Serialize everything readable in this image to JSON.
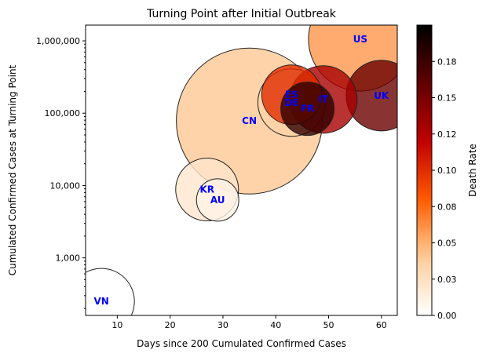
{
  "chart_data": {
    "type": "scatter",
    "title": "Turning Point after Initial Outbreak",
    "xlabel": "Days since 200 Cumulated Confirmed Cases",
    "ylabel": "Cumulated Confirmed Cases at Turning Point",
    "xlim": [
      4,
      63
    ],
    "ylim": [
      160,
      1650000
    ],
    "yscale": "log",
    "x_ticks": [
      10,
      20,
      30,
      40,
      50,
      60
    ],
    "x_tick_labels": [
      "10",
      "20",
      "30",
      "40",
      "50",
      "60"
    ],
    "y_ticks": [
      1000,
      10000,
      100000,
      1000000
    ],
    "y_tick_labels": [
      "1,000",
      "10,000",
      "100,000",
      "1,000,000"
    ],
    "grid": false,
    "colorbar": {
      "label": "Death Rate",
      "range": [
        0,
        0.2
      ],
      "ticks": [
        0.0,
        0.025,
        0.05,
        0.075,
        0.1,
        0.125,
        0.15,
        0.175
      ],
      "tick_labels": [
        "0.00",
        "0.03",
        "0.05",
        "0.08",
        "0.10",
        "0.12",
        "0.15",
        "0.18"
      ],
      "colormap": "gist_heat_r"
    },
    "points": [
      {
        "label": "VN",
        "x": 7,
        "y": 250,
        "death_rate": 0.0,
        "size": 42
      },
      {
        "label": "KR",
        "x": 27,
        "y": 8800,
        "death_rate": 0.02,
        "size": 40
      },
      {
        "label": "AU",
        "x": 29,
        "y": 6300,
        "death_rate": 0.01,
        "size": 27
      },
      {
        "label": "CN",
        "x": 35,
        "y": 78000,
        "death_rate": 0.04,
        "size": 93
      },
      {
        "label": "FR",
        "x": 46,
        "y": 115000,
        "death_rate": 0.18,
        "size": 34
      },
      {
        "label": "DE",
        "x": 43,
        "y": 140000,
        "death_rate": 0.035,
        "size": 43
      },
      {
        "label": "IT",
        "x": 49,
        "y": 155000,
        "death_rate": 0.13,
        "size": 43
      },
      {
        "label": "ES",
        "x": 43,
        "y": 180000,
        "death_rate": 0.1,
        "size": 38
      },
      {
        "label": "UK",
        "x": 60,
        "y": 175000,
        "death_rate": 0.155,
        "size": 45
      },
      {
        "label": "US",
        "x": 56,
        "y": 1050000,
        "death_rate": 0.06,
        "size": 66
      }
    ]
  }
}
